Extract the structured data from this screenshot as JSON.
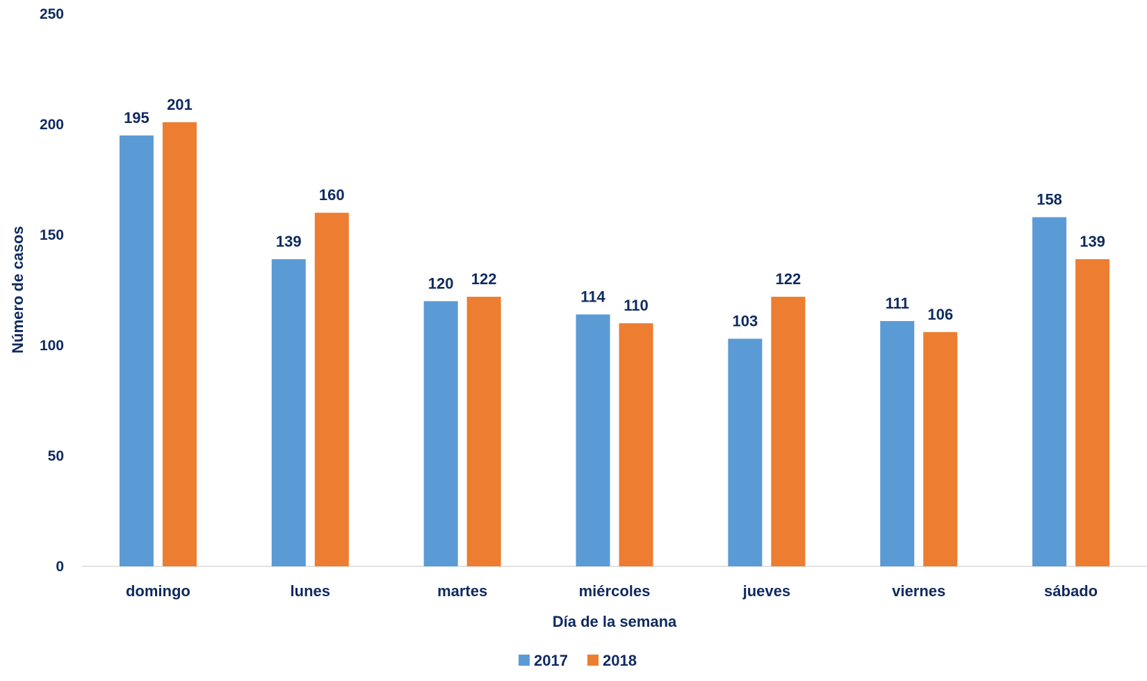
{
  "chart_data": {
    "type": "bar",
    "title": "",
    "xlabel": "Día de la semana",
    "ylabel": "Número de casos",
    "ylim": [
      0,
      250
    ],
    "yticks": [
      0,
      50,
      100,
      150,
      200,
      250
    ],
    "grid": false,
    "legend_position": "bottom",
    "categories": [
      "domingo",
      "lunes",
      "martes",
      "miércoles",
      "jueves",
      "viernes",
      "sábado"
    ],
    "series": [
      {
        "name": "2017",
        "color": "#5b9bd5",
        "values": [
          195,
          139,
          120,
          114,
          103,
          111,
          158
        ]
      },
      {
        "name": "2018",
        "color": "#ed7d31",
        "values": [
          201,
          160,
          122,
          110,
          122,
          106,
          139
        ]
      }
    ]
  }
}
